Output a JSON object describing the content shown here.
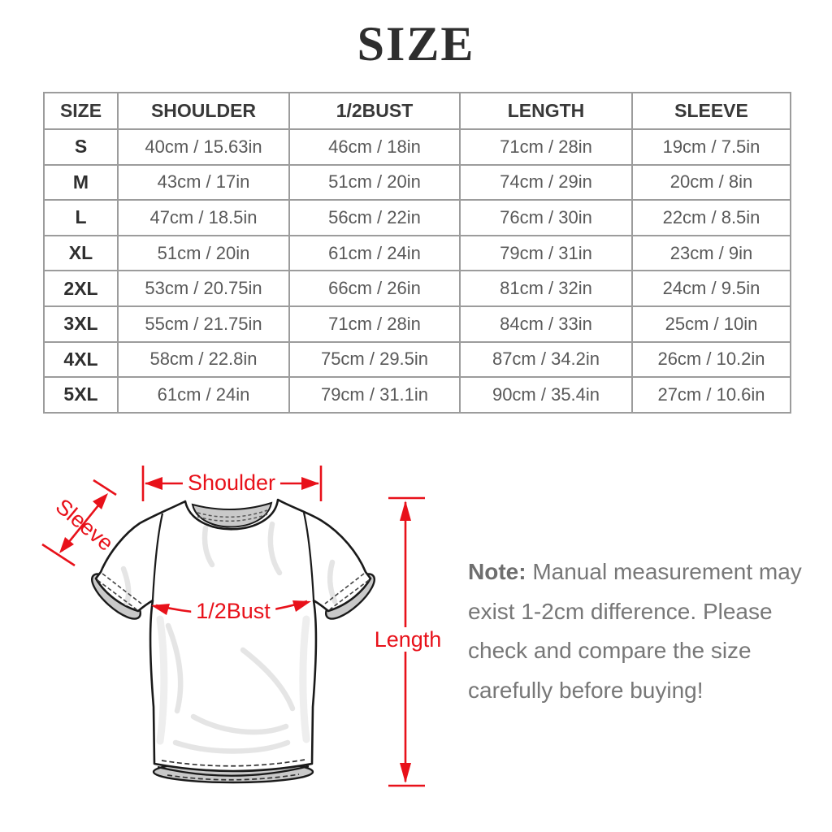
{
  "title": "SIZE",
  "table": {
    "headers": [
      "SIZE",
      "SHOULDER",
      "1/2BUST",
      "LENGTH",
      "SLEEVE"
    ],
    "rows": [
      [
        "S",
        "40cm / 15.63in",
        "46cm / 18in",
        "71cm / 28in",
        "19cm / 7.5in"
      ],
      [
        "M",
        "43cm / 17in",
        "51cm / 20in",
        "74cm / 29in",
        "20cm / 8in"
      ],
      [
        "L",
        "47cm / 18.5in",
        "56cm / 22in",
        "76cm / 30in",
        "22cm / 8.5in"
      ],
      [
        "XL",
        "51cm / 20in",
        "61cm / 24in",
        "79cm / 31in",
        "23cm / 9in"
      ],
      [
        "2XL",
        "53cm / 20.75in",
        "66cm / 26in",
        "81cm / 32in",
        "24cm / 9.5in"
      ],
      [
        "3XL",
        "55cm / 21.75in",
        "71cm / 28in",
        "84cm / 33in",
        "25cm / 10in"
      ],
      [
        "4XL",
        "58cm / 22.8in",
        "75cm / 29.5in",
        "87cm / 34.2in",
        "26cm / 10.2in"
      ],
      [
        "5XL",
        "61cm / 24in",
        "79cm / 31.1in",
        "90cm / 35.4in",
        "27cm / 10.6in"
      ]
    ]
  },
  "diagram": {
    "labels": {
      "shoulder": "Shoulder",
      "sleeve": "Sleeve",
      "bust": "1/2Bust",
      "length": "Length"
    }
  },
  "note": {
    "label": "Note:",
    "body": " Manual measurement may exist 1-2cm difference. Please check and compare the size carefully before buying!"
  },
  "colors": {
    "accent": "#e8111a",
    "table_border": "#9c9c9c",
    "cell_text": "#595959",
    "note_text": "#777777"
  }
}
